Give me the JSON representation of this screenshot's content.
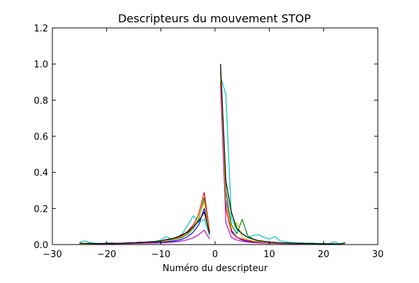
{
  "chart_data": {
    "type": "line",
    "title": "Descripteurs du mouvement STOP",
    "xlabel": "Numéro du descripteur",
    "ylabel": "",
    "xlim": [
      -30,
      30
    ],
    "ylim": [
      0.0,
      1.2
    ],
    "x_ticks": [
      -30,
      -20,
      -10,
      0,
      10,
      20,
      30
    ],
    "x_tick_labels": [
      "−30",
      "−20",
      "−10",
      "0",
      "10",
      "20",
      "30"
    ],
    "y_ticks": [
      0.0,
      0.2,
      0.4,
      0.6,
      0.8,
      1.0,
      1.2
    ],
    "y_tick_labels": [
      "0.0",
      "0.2",
      "0.4",
      "0.6",
      "0.8",
      "1.0",
      "1.2"
    ],
    "grid": false,
    "legend": "none",
    "x": [
      -25,
      -24,
      -23,
      -22,
      -21,
      -20,
      -19,
      -18,
      -17,
      -16,
      -15,
      -14,
      -13,
      -12,
      -11,
      -10,
      -9,
      -8,
      -7,
      -6,
      -5,
      -4,
      -3,
      -2,
      -1,
      0,
      1,
      2,
      3,
      4,
      5,
      6,
      7,
      8,
      9,
      10,
      11,
      12,
      13,
      14,
      15,
      16,
      17,
      18,
      19,
      20,
      21,
      22,
      23,
      24
    ],
    "series": [
      {
        "color": "#0000ff",
        "values": [
          0.005,
          0.006,
          0.004,
          0.003,
          0.005,
          0.004,
          0.006,
          0.005,
          0.007,
          0.006,
          0.008,
          0.007,
          0.009,
          0.01,
          0.012,
          0.011,
          0.015,
          0.018,
          0.022,
          0.03,
          0.045,
          0.07,
          0.11,
          0.2,
          0.05,
          null,
          1.0,
          0.25,
          0.08,
          0.04,
          0.025,
          0.018,
          0.015,
          0.012,
          0.01,
          0.009,
          0.008,
          0.007,
          0.006,
          0.006,
          0.005,
          0.005,
          0.004,
          0.004,
          0.004,
          0.003,
          0.003,
          0.003,
          0.002,
          0.002
        ]
      },
      {
        "color": "#008000",
        "values": [
          0.004,
          0.005,
          0.006,
          0.004,
          0.005,
          0.006,
          0.005,
          0.007,
          0.006,
          0.008,
          0.009,
          0.01,
          0.011,
          0.013,
          0.014,
          0.016,
          0.02,
          0.024,
          0.03,
          0.04,
          0.06,
          0.09,
          0.14,
          0.26,
          0.06,
          null,
          0.95,
          0.3,
          0.11,
          0.06,
          0.14,
          0.05,
          0.03,
          0.02,
          0.015,
          0.012,
          0.01,
          0.009,
          0.008,
          0.007,
          0.006,
          0.006,
          0.005,
          0.005,
          0.004,
          0.004,
          0.003,
          0.003,
          0.003,
          0.002
        ]
      },
      {
        "color": "#ff0000",
        "values": [
          0.003,
          0.004,
          0.005,
          0.004,
          0.006,
          0.005,
          0.007,
          0.006,
          0.008,
          0.007,
          0.009,
          0.011,
          0.012,
          0.014,
          0.016,
          0.018,
          0.022,
          0.028,
          0.035,
          0.05,
          0.075,
          0.11,
          0.17,
          0.29,
          0.07,
          null,
          0.9,
          0.2,
          0.07,
          0.04,
          0.03,
          0.022,
          0.018,
          0.014,
          0.012,
          0.01,
          0.009,
          0.008,
          0.007,
          0.006,
          0.005,
          0.005,
          0.004,
          0.004,
          0.004,
          0.003,
          0.003,
          0.002,
          0.002,
          0.002
        ]
      },
      {
        "color": "#00bfbf",
        "values": [
          0.012,
          0.02,
          0.01,
          0.008,
          0.006,
          0.008,
          0.01,
          0.007,
          0.009,
          0.012,
          0.01,
          0.014,
          0.012,
          0.016,
          0.018,
          0.025,
          0.045,
          0.03,
          0.04,
          0.06,
          0.11,
          0.16,
          0.12,
          0.14,
          0.05,
          null,
          0.93,
          0.83,
          0.15,
          0.08,
          0.06,
          0.04,
          0.05,
          0.055,
          0.04,
          0.03,
          0.045,
          0.02,
          0.015,
          0.012,
          0.01,
          0.01,
          0.008,
          0.009,
          0.006,
          0.006,
          0.005,
          0.015,
          0.004,
          0.004
        ]
      },
      {
        "color": "#bf00bf",
        "values": [
          0.002,
          0.003,
          0.004,
          0.003,
          0.004,
          0.003,
          0.004,
          0.004,
          0.005,
          0.005,
          0.006,
          0.006,
          0.007,
          0.008,
          0.008,
          0.009,
          0.011,
          0.013,
          0.016,
          0.02,
          0.028,
          0.038,
          0.055,
          0.08,
          0.03,
          null,
          0.88,
          0.12,
          0.04,
          0.025,
          0.018,
          0.014,
          0.011,
          0.009,
          0.008,
          0.007,
          0.006,
          0.005,
          0.005,
          0.004,
          0.004,
          0.003,
          0.003,
          0.003,
          0.003,
          0.002,
          0.002,
          0.002,
          0.002,
          0.001
        ]
      },
      {
        "color": "#bfbf00",
        "values": [
          0.004,
          0.004,
          0.005,
          0.005,
          0.006,
          0.006,
          0.007,
          0.007,
          0.008,
          0.009,
          0.01,
          0.011,
          0.012,
          0.014,
          0.016,
          0.018,
          0.021,
          0.026,
          0.032,
          0.044,
          0.065,
          0.095,
          0.15,
          0.24,
          0.055,
          null,
          0.97,
          0.23,
          0.09,
          0.12,
          0.04,
          0.028,
          0.02,
          0.016,
          0.013,
          0.011,
          0.009,
          0.008,
          0.007,
          0.006,
          0.006,
          0.005,
          0.005,
          0.004,
          0.004,
          0.003,
          0.003,
          0.003,
          0.002,
          0.002
        ]
      },
      {
        "color": "#000000",
        "values": [
          0.008,
          0.006,
          0.007,
          0.005,
          0.006,
          0.007,
          0.006,
          0.008,
          0.007,
          0.009,
          0.01,
          0.012,
          0.013,
          0.015,
          0.017,
          0.02,
          0.028,
          0.032,
          0.042,
          0.055,
          0.07,
          0.1,
          0.13,
          0.18,
          0.06,
          null,
          1.0,
          0.35,
          0.18,
          0.09,
          0.06,
          0.04,
          0.03,
          0.022,
          0.018,
          0.014,
          0.012,
          0.01,
          0.009,
          0.008,
          0.007,
          0.006,
          0.006,
          0.005,
          0.005,
          0.004,
          0.004,
          0.004,
          0.003,
          0.01
        ]
      }
    ]
  }
}
